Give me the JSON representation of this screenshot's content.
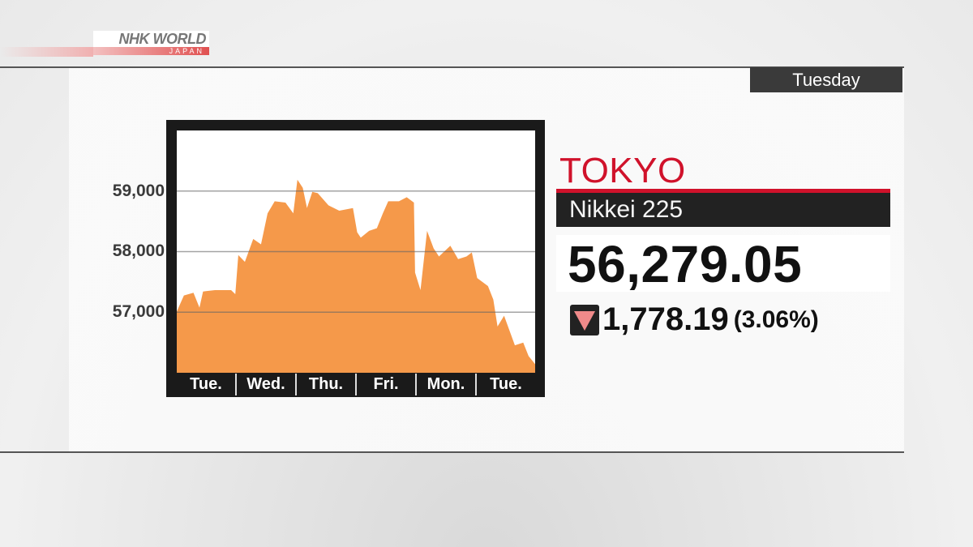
{
  "logo": {
    "text": "NHK WORLD",
    "sub": "JAPAN"
  },
  "day_label": "Tuesday",
  "market": {
    "city": "TOKYO",
    "index": "Nikkei 225",
    "value": "56,279.05",
    "change": "1,778.19",
    "change_pct": "(3.06%)",
    "direction": "down"
  },
  "colors": {
    "fill": "#f5994a",
    "city": "#d0122b",
    "down": "#f08a8a"
  },
  "chart_data": {
    "type": "area",
    "title": "",
    "xlabel": "",
    "ylabel": "",
    "categories": [
      "Tue.",
      "Wed.",
      "Thu.",
      "Fri.",
      "Mon.",
      "Tue."
    ],
    "y_ticks": [
      {
        "value": 57000,
        "label": "57,000"
      },
      {
        "value": 58000,
        "label": "58,000"
      },
      {
        "value": 59000,
        "label": "59,000"
      }
    ],
    "ylim": [
      56000,
      60000
    ],
    "grid": true,
    "series": [
      {
        "x": [
          0,
          0.12,
          0.28,
          0.38,
          0.44,
          0.64,
          0.91,
          0.98,
          1.03,
          1.14,
          1.28,
          1.41,
          1.52,
          1.64,
          1.82,
          1.95,
          2.02,
          2.11,
          2.18,
          2.27,
          2.36,
          2.54,
          2.72,
          2.95,
          3.02,
          3.08,
          3.22,
          3.35,
          3.45,
          3.54,
          3.72,
          3.85,
          3.97,
          3.99,
          4.08,
          4.19,
          4.3,
          4.39,
          4.58,
          4.71,
          4.85,
          4.94,
          5.03,
          5.21,
          5.3,
          5.37,
          5.48,
          5.66,
          5.8,
          5.89,
          6.0
        ],
        "y": [
          57010,
          57276,
          57320,
          57076,
          57342,
          57364,
          57364,
          57298,
          57942,
          57831,
          58209,
          58120,
          58631,
          58831,
          58809,
          58631,
          59187,
          59053,
          58720,
          58987,
          58964,
          58764,
          58676,
          58720,
          58320,
          58231,
          58342,
          58387,
          58631,
          58831,
          58831,
          58898,
          58809,
          57653,
          57364,
          58342,
          58053,
          57920,
          58098,
          57876,
          57920,
          57987,
          57564,
          57431,
          57209,
          56764,
          56942,
          56453,
          56498,
          56276,
          56142
        ]
      }
    ]
  }
}
